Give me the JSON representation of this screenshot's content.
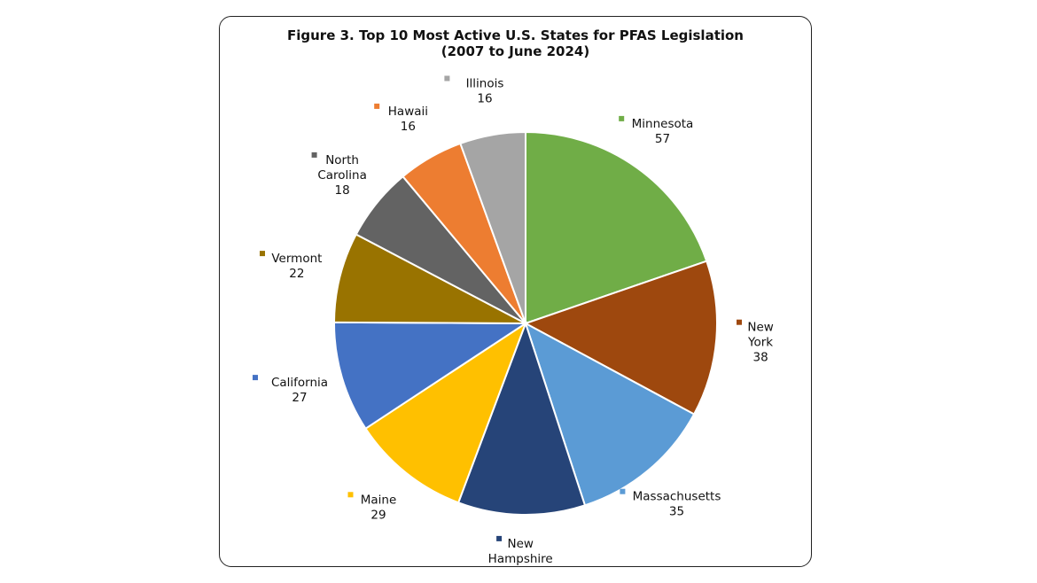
{
  "chart_data": {
    "type": "pie",
    "title": "Figure 3. Top 10 Most Active U.S. States for PFAS Legislation",
    "subtitle": "(2007 to June 2024)",
    "slices": [
      {
        "label": "Minnesota",
        "label_lines": [
          "Minnesota"
        ],
        "value": 57,
        "color": "#70ad47"
      },
      {
        "label": "New York",
        "label_lines": [
          "New",
          "York"
        ],
        "value": 38,
        "color": "#9e480e"
      },
      {
        "label": "Massachusetts",
        "label_lines": [
          "Massachusetts"
        ],
        "value": 35,
        "color": "#5b9bd5"
      },
      {
        "label": "New Hampshire",
        "label_lines": [
          "New",
          "Hampshire"
        ],
        "value": 31,
        "color": "#264478"
      },
      {
        "label": "Maine",
        "label_lines": [
          "Maine"
        ],
        "value": 29,
        "color": "#ffc000"
      },
      {
        "label": "California",
        "label_lines": [
          "California"
        ],
        "value": 27,
        "color": "#4472c4"
      },
      {
        "label": "Vermont",
        "label_lines": [
          "Vermont"
        ],
        "value": 22,
        "color": "#997300"
      },
      {
        "label": "North Carolina",
        "label_lines": [
          "North",
          "Carolina"
        ],
        "value": 18,
        "color": "#636363"
      },
      {
        "label": "Hawaii",
        "label_lines": [
          "Hawaii"
        ],
        "value": 16,
        "color": "#ed7d31"
      },
      {
        "label": "Illinois",
        "label_lines": [
          "Illinois"
        ],
        "value": 16,
        "color": "#a5a5a5"
      }
    ]
  }
}
